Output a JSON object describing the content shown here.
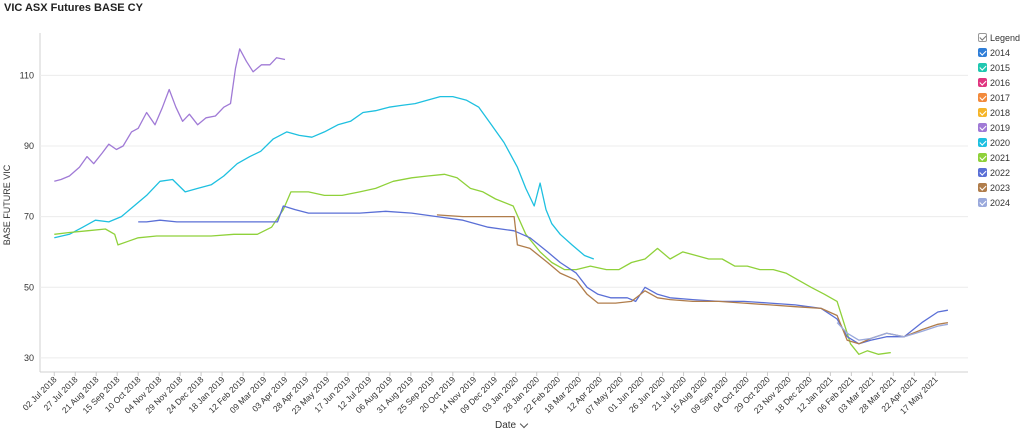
{
  "title": "VIC ASX Futures BASE CY",
  "legend_title": "Legend",
  "x_axis_toggle_label": "Date",
  "chart_data": {
    "type": "line",
    "ylabel": "BASE FUTURE VIC",
    "xlabel": "Date",
    "ylim": [
      26,
      122
    ],
    "yticks": [
      30,
      50,
      70,
      90,
      110
    ],
    "x_range": [
      "2018-06-15",
      "2021-06-25"
    ],
    "xticks": [
      "02 Jul 2018",
      "27 Jul 2018",
      "21 Aug 2018",
      "15 Sep 2018",
      "10 Oct 2018",
      "04 Nov 2018",
      "29 Nov 2018",
      "24 Dec 2018",
      "18 Jan 2019",
      "12 Feb 2019",
      "09 Mar 2019",
      "03 Apr 2019",
      "28 Apr 2019",
      "23 May 2019",
      "17 Jun 2019",
      "12 Jul 2019",
      "06 Aug 2019",
      "31 Aug 2019",
      "25 Sep 2019",
      "20 Oct 2019",
      "14 Nov 2019",
      "09 Dec 2019",
      "03 Jan 2020",
      "28 Jan 2020",
      "22 Feb 2020",
      "18 Mar 2020",
      "12 Apr 2020",
      "07 May 2020",
      "01 Jun 2020",
      "26 Jun 2020",
      "21 Jul 2020",
      "15 Aug 2020",
      "09 Sep 2020",
      "04 Oct 2020",
      "29 Oct 2020",
      "23 Nov 2020",
      "18 Dec 2020",
      "12 Jan 2021",
      "06 Feb 2021",
      "03 Mar 2021",
      "28 Mar 2021",
      "22 Apr 2021",
      "17 May 2021"
    ],
    "grid": true,
    "legend_position": "right",
    "series": [
      {
        "name": "2014",
        "color": "#2f7ed8",
        "points": []
      },
      {
        "name": "2015",
        "color": "#1fc7b0",
        "points": []
      },
      {
        "name": "2016",
        "color": "#e0357f",
        "points": []
      },
      {
        "name": "2017",
        "color": "#f28a3c",
        "points": []
      },
      {
        "name": "2018",
        "color": "#f5b529",
        "points": []
      },
      {
        "name": "2019",
        "color": "#a07ad6",
        "points": [
          [
            "2018-07-02",
            80
          ],
          [
            "2018-07-10",
            80.5
          ],
          [
            "2018-07-20",
            81.5
          ],
          [
            "2018-08-01",
            84
          ],
          [
            "2018-08-10",
            87
          ],
          [
            "2018-08-18",
            85
          ],
          [
            "2018-08-28",
            88
          ],
          [
            "2018-09-05",
            90.5
          ],
          [
            "2018-09-14",
            89
          ],
          [
            "2018-09-22",
            90
          ],
          [
            "2018-10-02",
            94
          ],
          [
            "2018-10-10",
            95
          ],
          [
            "2018-10-20",
            99.5
          ],
          [
            "2018-10-30",
            96
          ],
          [
            "2018-11-08",
            101
          ],
          [
            "2018-11-16",
            106
          ],
          [
            "2018-11-24",
            101
          ],
          [
            "2018-12-02",
            97
          ],
          [
            "2018-12-10",
            99
          ],
          [
            "2018-12-20",
            96
          ],
          [
            "2018-12-30",
            98
          ],
          [
            "2019-01-10",
            98.5
          ],
          [
            "2019-01-20",
            101
          ],
          [
            "2019-01-28",
            102
          ],
          [
            "2019-02-03",
            112
          ],
          [
            "2019-02-08",
            117.5
          ],
          [
            "2019-02-16",
            114
          ],
          [
            "2019-02-24",
            111
          ],
          [
            "2019-03-06",
            113
          ],
          [
            "2019-03-16",
            113
          ],
          [
            "2019-03-24",
            115
          ],
          [
            "2019-04-03",
            114.5
          ]
        ]
      },
      {
        "name": "2020",
        "color": "#1ec0e0",
        "points": [
          [
            "2018-07-02",
            64
          ],
          [
            "2018-07-20",
            65
          ],
          [
            "2018-08-05",
            67
          ],
          [
            "2018-08-20",
            69
          ],
          [
            "2018-09-05",
            68.5
          ],
          [
            "2018-09-20",
            70
          ],
          [
            "2018-10-05",
            73
          ],
          [
            "2018-10-20",
            76
          ],
          [
            "2018-11-05",
            80
          ],
          [
            "2018-11-20",
            80.5
          ],
          [
            "2018-12-05",
            77
          ],
          [
            "2018-12-20",
            78
          ],
          [
            "2019-01-05",
            79
          ],
          [
            "2019-01-20",
            81.5
          ],
          [
            "2019-02-05",
            85
          ],
          [
            "2019-02-20",
            87
          ],
          [
            "2019-03-05",
            88.5
          ],
          [
            "2019-03-20",
            92
          ],
          [
            "2019-04-05",
            94
          ],
          [
            "2019-04-20",
            93
          ],
          [
            "2019-05-05",
            92.5
          ],
          [
            "2019-05-20",
            94
          ],
          [
            "2019-06-05",
            96
          ],
          [
            "2019-06-20",
            97
          ],
          [
            "2019-07-05",
            99.5
          ],
          [
            "2019-07-20",
            100
          ],
          [
            "2019-08-05",
            101
          ],
          [
            "2019-08-20",
            101.5
          ],
          [
            "2019-09-05",
            102
          ],
          [
            "2019-09-20",
            103
          ],
          [
            "2019-10-05",
            104
          ],
          [
            "2019-10-20",
            104
          ],
          [
            "2019-11-05",
            103
          ],
          [
            "2019-11-20",
            101
          ],
          [
            "2019-12-05",
            96
          ],
          [
            "2019-12-20",
            91
          ],
          [
            "2020-01-05",
            84
          ],
          [
            "2020-01-15",
            78
          ],
          [
            "2020-01-25",
            73
          ],
          [
            "2020-02-01",
            79.5
          ],
          [
            "2020-02-08",
            72
          ],
          [
            "2020-02-15",
            68
          ],
          [
            "2020-02-25",
            65
          ],
          [
            "2020-03-10",
            62
          ],
          [
            "2020-03-25",
            59
          ],
          [
            "2020-04-05",
            58
          ]
        ]
      },
      {
        "name": "2021",
        "color": "#8fd13a",
        "points": [
          [
            "2018-07-02",
            65
          ],
          [
            "2018-07-20",
            65.5
          ],
          [
            "2018-08-10",
            66
          ],
          [
            "2018-09-01",
            66.5
          ],
          [
            "2018-09-12",
            65
          ],
          [
            "2018-09-16",
            62
          ],
          [
            "2018-09-28",
            63
          ],
          [
            "2018-10-10",
            64
          ],
          [
            "2018-11-01",
            64.5
          ],
          [
            "2018-12-01",
            64.5
          ],
          [
            "2019-01-05",
            64.5
          ],
          [
            "2019-02-01",
            65
          ],
          [
            "2019-03-01",
            65
          ],
          [
            "2019-03-18",
            67
          ],
          [
            "2019-04-01",
            72
          ],
          [
            "2019-04-10",
            77
          ],
          [
            "2019-05-01",
            77
          ],
          [
            "2019-05-20",
            76
          ],
          [
            "2019-06-10",
            76
          ],
          [
            "2019-07-01",
            77
          ],
          [
            "2019-07-20",
            78
          ],
          [
            "2019-08-10",
            80
          ],
          [
            "2019-09-01",
            81
          ],
          [
            "2019-09-20",
            81.5
          ],
          [
            "2019-10-10",
            82
          ],
          [
            "2019-10-25",
            81
          ],
          [
            "2019-11-10",
            78
          ],
          [
            "2019-11-25",
            77
          ],
          [
            "2019-12-10",
            75
          ],
          [
            "2019-12-31",
            73
          ],
          [
            "2020-01-15",
            65
          ],
          [
            "2020-02-01",
            60
          ],
          [
            "2020-02-15",
            57
          ],
          [
            "2020-03-01",
            55
          ],
          [
            "2020-03-15",
            55
          ],
          [
            "2020-04-01",
            56
          ],
          [
            "2020-04-20",
            55
          ],
          [
            "2020-05-05",
            55
          ],
          [
            "2020-05-20",
            57
          ],
          [
            "2020-06-05",
            58
          ],
          [
            "2020-06-20",
            61
          ],
          [
            "2020-07-05",
            58
          ],
          [
            "2020-07-20",
            60
          ],
          [
            "2020-08-05",
            59
          ],
          [
            "2020-08-20",
            58
          ],
          [
            "2020-09-05",
            58
          ],
          [
            "2020-09-20",
            56
          ],
          [
            "2020-10-05",
            56
          ],
          [
            "2020-10-20",
            55
          ],
          [
            "2020-11-05",
            55
          ],
          [
            "2020-11-20",
            54
          ],
          [
            "2020-12-05",
            52
          ],
          [
            "2020-12-20",
            50
          ],
          [
            "2021-01-05",
            48
          ],
          [
            "2021-01-20",
            46
          ],
          [
            "2021-01-28",
            40
          ],
          [
            "2021-02-05",
            34
          ],
          [
            "2021-02-15",
            31
          ],
          [
            "2021-02-25",
            32
          ],
          [
            "2021-03-10",
            31
          ],
          [
            "2021-03-25",
            31.5
          ]
        ]
      },
      {
        "name": "2022",
        "color": "#5a6fd6",
        "points": [
          [
            "2018-10-10",
            68.5
          ],
          [
            "2018-10-20",
            68.5
          ],
          [
            "2018-11-05",
            69
          ],
          [
            "2018-11-25",
            68.5
          ],
          [
            "2018-12-15",
            68.5
          ],
          [
            "2019-01-15",
            68.5
          ],
          [
            "2019-02-15",
            68.5
          ],
          [
            "2019-03-25",
            68.5
          ],
          [
            "2019-04-01",
            73
          ],
          [
            "2019-04-15",
            72
          ],
          [
            "2019-05-01",
            71
          ],
          [
            "2019-06-01",
            71
          ],
          [
            "2019-07-01",
            71
          ],
          [
            "2019-08-01",
            71.5
          ],
          [
            "2019-09-01",
            71
          ],
          [
            "2019-10-01",
            70
          ],
          [
            "2019-11-01",
            69
          ],
          [
            "2019-12-01",
            67
          ],
          [
            "2020-01-01",
            66
          ],
          [
            "2020-01-20",
            64
          ],
          [
            "2020-02-10",
            60
          ],
          [
            "2020-02-25",
            57
          ],
          [
            "2020-03-15",
            54
          ],
          [
            "2020-03-28",
            50
          ],
          [
            "2020-04-10",
            48
          ],
          [
            "2020-04-25",
            47
          ],
          [
            "2020-05-15",
            47
          ],
          [
            "2020-05-25",
            46
          ],
          [
            "2020-06-05",
            50
          ],
          [
            "2020-06-20",
            48
          ],
          [
            "2020-07-05",
            47
          ],
          [
            "2020-08-01",
            46.5
          ],
          [
            "2020-09-01",
            46
          ],
          [
            "2020-10-01",
            46
          ],
          [
            "2020-11-01",
            45.5
          ],
          [
            "2020-12-01",
            45
          ],
          [
            "2021-01-01",
            44
          ],
          [
            "2021-01-20",
            41
          ],
          [
            "2021-02-01",
            36
          ],
          [
            "2021-02-15",
            34
          ],
          [
            "2021-03-01",
            35
          ],
          [
            "2021-03-20",
            36
          ],
          [
            "2021-04-10",
            36
          ],
          [
            "2021-05-01",
            40
          ],
          [
            "2021-05-20",
            43
          ],
          [
            "2021-06-01",
            43.5
          ]
        ]
      },
      {
        "name": "2023",
        "color": "#b07d4b",
        "points": [
          [
            "2019-10-01",
            70.5
          ],
          [
            "2019-11-01",
            70
          ],
          [
            "2019-12-01",
            70
          ],
          [
            "2020-01-01",
            70
          ],
          [
            "2020-01-05",
            62
          ],
          [
            "2020-01-20",
            61
          ],
          [
            "2020-02-10",
            57
          ],
          [
            "2020-02-25",
            54
          ],
          [
            "2020-03-15",
            52
          ],
          [
            "2020-03-28",
            48
          ],
          [
            "2020-04-10",
            45.5
          ],
          [
            "2020-05-01",
            45.5
          ],
          [
            "2020-05-20",
            46
          ],
          [
            "2020-06-05",
            49
          ],
          [
            "2020-06-20",
            47
          ],
          [
            "2020-07-05",
            46.5
          ],
          [
            "2020-08-01",
            46
          ],
          [
            "2020-09-01",
            46
          ],
          [
            "2020-10-01",
            45.5
          ],
          [
            "2020-11-01",
            45
          ],
          [
            "2020-12-01",
            44.5
          ],
          [
            "2021-01-01",
            44
          ],
          [
            "2021-01-20",
            42
          ],
          [
            "2021-02-01",
            35
          ],
          [
            "2021-02-15",
            34
          ],
          [
            "2021-03-01",
            35.5
          ],
          [
            "2021-03-20",
            37
          ],
          [
            "2021-04-10",
            36
          ],
          [
            "2021-05-01",
            38
          ],
          [
            "2021-05-20",
            39.5
          ],
          [
            "2021-06-01",
            40
          ]
        ]
      },
      {
        "name": "2024",
        "color": "#9aa9dc",
        "points": [
          [
            "2021-01-20",
            40
          ],
          [
            "2021-02-01",
            37
          ],
          [
            "2021-02-15",
            35
          ],
          [
            "2021-03-01",
            35.5
          ],
          [
            "2021-03-20",
            37
          ],
          [
            "2021-04-10",
            36
          ],
          [
            "2021-05-01",
            37.5
          ],
          [
            "2021-05-20",
            39
          ],
          [
            "2021-06-01",
            39.5
          ]
        ]
      }
    ]
  }
}
